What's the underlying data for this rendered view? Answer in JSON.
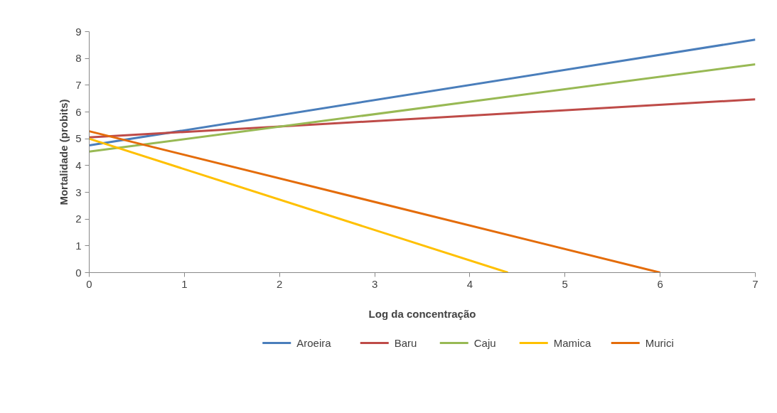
{
  "chart_data": {
    "type": "line",
    "xlabel": "Log da concentração",
    "ylabel": "Mortalidade (probits)",
    "xlim": [
      0,
      7
    ],
    "xticks": [
      0,
      1,
      2,
      3,
      4,
      5,
      6,
      7
    ],
    "ylim": [
      0,
      9
    ],
    "yticks": [
      0,
      1,
      2,
      3,
      4,
      5,
      6,
      7,
      8,
      9
    ],
    "grid": false,
    "legend": "bottom",
    "marker": "none",
    "line_style": "solid",
    "series": [
      {
        "name": "Aroeira",
        "color": "#4a7ebb",
        "x": [
          0,
          7
        ],
        "values": [
          4.75,
          8.7
        ]
      },
      {
        "name": "Baru",
        "color": "#be4b48",
        "x": [
          0,
          7
        ],
        "values": [
          5.05,
          6.47
        ]
      },
      {
        "name": "Caju",
        "color": "#98b954",
        "x": [
          0,
          7
        ],
        "values": [
          4.52,
          7.78
        ]
      },
      {
        "name": "Mamica",
        "color": "#ffc000",
        "x": [
          0,
          4.4
        ],
        "values": [
          5.0,
          0
        ]
      },
      {
        "name": "Murici",
        "color": "#e46c0a",
        "x": [
          0,
          6.0
        ],
        "values": [
          5.28,
          0
        ]
      }
    ]
  }
}
